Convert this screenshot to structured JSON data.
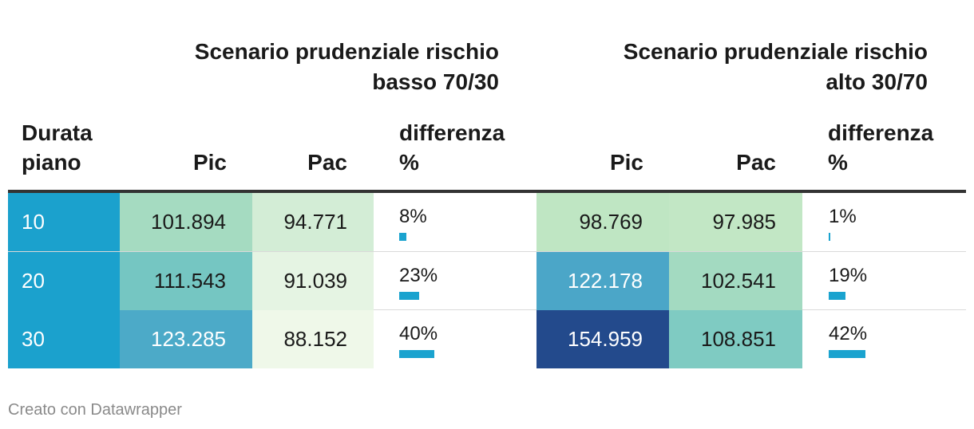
{
  "groups": [
    {
      "title_line1": "Scenario prudenziale rischio",
      "title_line2": "basso 70/30"
    },
    {
      "title_line1": "Scenario prudenziale rischio",
      "title_line2": "alto 30/70"
    }
  ],
  "headers": {
    "duration_line1": "Durata",
    "duration_line2": "piano",
    "pic": "Pic",
    "pac": "Pac",
    "diff_line1": "differenza",
    "diff_line2": "%"
  },
  "chart_data": {
    "type": "table",
    "columns": [
      "Durata piano",
      "Pic",
      "Pac",
      "differenza %",
      "Pic",
      "Pac",
      "differenza %"
    ],
    "rows": [
      {
        "duration": "10",
        "low_pic": "101.894",
        "low_pac": "94.771",
        "low_diff": "8%",
        "low_diff_value": 8,
        "high_pic": "98.769",
        "high_pac": "97.985",
        "high_diff": "1%",
        "high_diff_value": 1
      },
      {
        "duration": "20",
        "low_pic": "111.543",
        "low_pac": "91.039",
        "low_diff": "23%",
        "low_diff_value": 23,
        "high_pic": "122.178",
        "high_pac": "102.541",
        "high_diff": "19%",
        "high_diff_value": 19
      },
      {
        "duration": "30",
        "low_pic": "123.285",
        "low_pac": "88.152",
        "low_diff": "40%",
        "low_diff_value": 40,
        "high_pic": "154.959",
        "high_pac": "108.851",
        "high_diff": "42%",
        "high_diff_value": 42
      }
    ],
    "colors": {
      "duration_cell": "#1ba1cd",
      "bar": "#1aa3cf",
      "low_pic": [
        "#a5dbc1",
        "#75c6c2",
        "#4caac8"
      ],
      "low_pac": [
        "#d3edd6",
        "#e5f4e3",
        "#eff8e9"
      ],
      "high_pic": [
        "#bfe6c3",
        "#4ba6c8",
        "#234a8c"
      ],
      "high_pac": [
        "#c2e7c5",
        "#a3dac1",
        "#7fcbc2"
      ]
    },
    "text_colors": {
      "low_pic": [
        "#1a1a1a",
        "#1a1a1a",
        "#ffffff"
      ],
      "low_pac": [
        "#1a1a1a",
        "#1a1a1a",
        "#1a1a1a"
      ],
      "high_pic": [
        "#1a1a1a",
        "#ffffff",
        "#ffffff"
      ],
      "high_pac": [
        "#1a1a1a",
        "#1a1a1a",
        "#1a1a1a"
      ]
    }
  },
  "footer": "Creato con Datawrapper"
}
